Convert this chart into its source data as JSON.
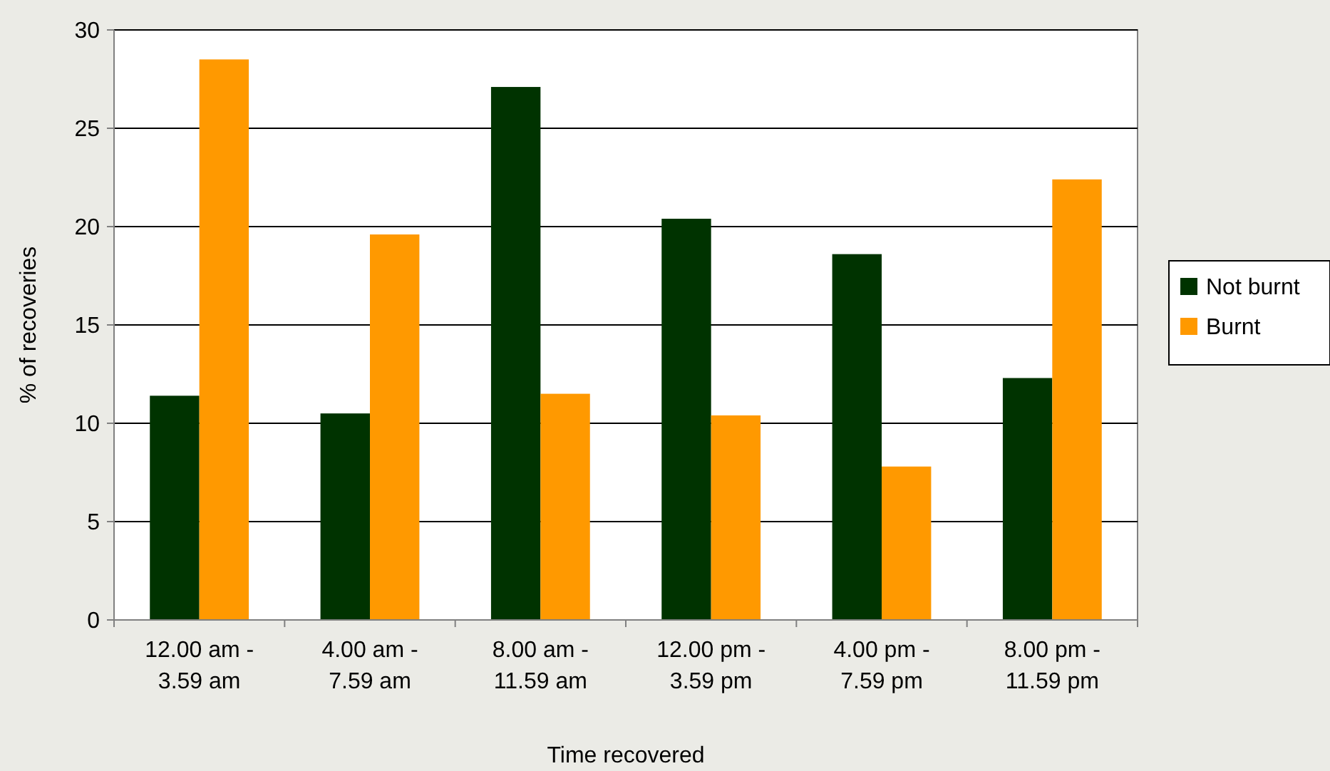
{
  "chart_data": {
    "type": "bar",
    "xlabel": "Time recovered",
    "ylabel": "% of recoveries",
    "categories": [
      "12.00 am -\n3.59 am",
      "4.00 am -\n7.59 am",
      "8.00 am -\n11.59 am",
      "12.00 pm -\n3.59 pm",
      "4.00 pm -\n7.59 pm",
      "8.00 pm -\n11.59 pm"
    ],
    "series": [
      {
        "name": "Not burnt",
        "color": "#003300",
        "values": [
          11.4,
          10.5,
          27.1,
          20.4,
          18.6,
          12.3
        ]
      },
      {
        "name": "Burnt",
        "color": "#ff9900",
        "values": [
          28.5,
          19.6,
          11.5,
          10.4,
          7.8,
          22.4
        ]
      }
    ],
    "ylim": [
      0,
      30
    ],
    "yticks": [
      0,
      5,
      10,
      15,
      20,
      25,
      30
    ],
    "grid": "y",
    "legend": "right"
  }
}
